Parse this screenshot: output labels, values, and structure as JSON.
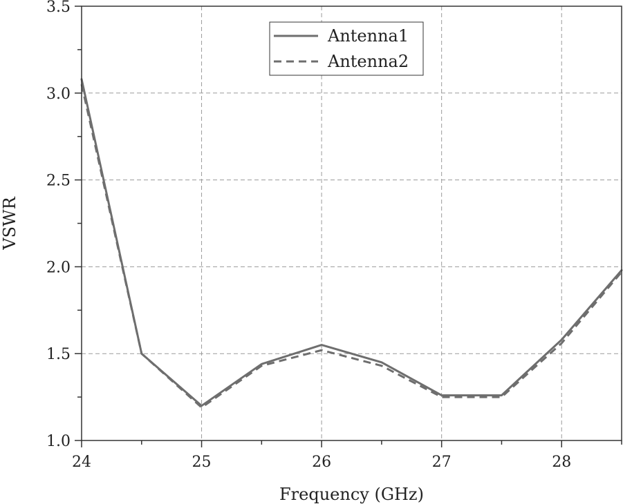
{
  "chart_data": {
    "type": "line",
    "title": "",
    "xlabel": "Frequency (GHz)",
    "ylabel": "VSWR",
    "xlim": [
      24,
      28.5
    ],
    "ylim": [
      1.0,
      3.5
    ],
    "xticks": [
      24,
      25,
      26,
      27,
      28
    ],
    "xtick_labels": [
      "24",
      "25",
      "26",
      "27",
      "28"
    ],
    "yticks": [
      1.0,
      1.5,
      2.0,
      2.5,
      3.0,
      3.5
    ],
    "ytick_labels": [
      "1.0",
      "1.5",
      "2.0",
      "2.5",
      "3.0",
      "3.5"
    ],
    "grid": true,
    "legend_position": "top-center",
    "series": [
      {
        "name": "Antenna1",
        "style": "solid",
        "color": "#6e6e6e",
        "x": [
          24,
          24.5,
          25,
          25.5,
          26,
          26.5,
          27,
          27.5,
          28,
          28.5
        ],
        "y": [
          3.08,
          1.5,
          1.2,
          1.44,
          1.55,
          1.45,
          1.26,
          1.26,
          1.58,
          1.98
        ]
      },
      {
        "name": "Antenna2",
        "style": "dashed",
        "color": "#6e6e6e",
        "x": [
          24,
          24.5,
          25,
          25.5,
          26,
          26.5,
          27,
          27.5,
          28,
          28.5
        ],
        "y": [
          3.05,
          1.5,
          1.19,
          1.43,
          1.52,
          1.43,
          1.25,
          1.25,
          1.56,
          1.97
        ]
      }
    ]
  }
}
